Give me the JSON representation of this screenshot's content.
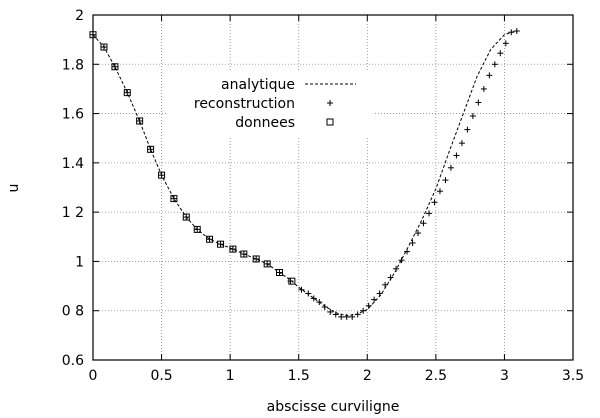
{
  "chart_data": {
    "type": "line",
    "title": "",
    "xlabel": "abscisse curviligne",
    "ylabel": "u",
    "xlim": [
      0,
      3.5
    ],
    "ylim": [
      0.6,
      2
    ],
    "grid": true,
    "legend_position": "top-center",
    "xticks": [
      {
        "value": 0,
        "label": "0"
      },
      {
        "value": 0.5,
        "label": "0.5"
      },
      {
        "value": 1,
        "label": "1"
      },
      {
        "value": 1.5,
        "label": "1.5"
      },
      {
        "value": 2,
        "label": "2"
      },
      {
        "value": 2.5,
        "label": "2.5"
      },
      {
        "value": 3,
        "label": "3"
      },
      {
        "value": 3.5,
        "label": "3.5"
      }
    ],
    "yticks": [
      {
        "value": 0.6,
        "label": "0.6"
      },
      {
        "value": 0.8,
        "label": "0 8"
      },
      {
        "value": 1.0,
        "label": "1"
      },
      {
        "value": 1.2,
        "label": "1 2"
      },
      {
        "value": 1.4,
        "label": "1.4"
      },
      {
        "value": 1.6,
        "label": "1.6"
      },
      {
        "value": 1.8,
        "label": "1.8"
      },
      {
        "value": 2.0,
        "label": "2"
      }
    ],
    "series": [
      {
        "name": "analytique",
        "style": "dashed-line",
        "color": "#000000",
        "x": [
          0,
          0.08,
          0.16,
          0.25,
          0.34,
          0.42,
          0.5,
          0.59,
          0.68,
          0.76,
          0.85,
          0.93,
          1.02,
          1.1,
          1.19,
          1.27,
          1.36,
          1.45,
          1.5,
          1.6,
          1.7,
          1.78,
          1.85,
          1.92,
          2.0,
          2.1,
          2.2,
          2.3,
          2.4,
          2.5,
          2.6,
          2.7,
          2.8,
          2.9,
          3.0,
          3.08
        ],
        "y": [
          1.92,
          1.87,
          1.79,
          1.685,
          1.57,
          1.455,
          1.35,
          1.255,
          1.18,
          1.13,
          1.09,
          1.07,
          1.05,
          1.03,
          1.01,
          0.99,
          0.955,
          0.92,
          0.895,
          0.855,
          0.815,
          0.79,
          0.78,
          0.785,
          0.805,
          0.865,
          0.955,
          1.06,
          1.17,
          1.295,
          1.45,
          1.6,
          1.75,
          1.86,
          1.92,
          1.935
        ]
      },
      {
        "name": "reconstruction",
        "style": "plus-markers",
        "color": "#000000",
        "x": [
          0,
          0.08,
          0.16,
          0.25,
          0.34,
          0.42,
          0.5,
          0.59,
          0.68,
          0.76,
          0.85,
          0.93,
          1.02,
          1.1,
          1.19,
          1.27,
          1.36,
          1.44,
          1.52,
          1.57,
          1.61,
          1.65,
          1.69,
          1.73,
          1.77,
          1.81,
          1.85,
          1.89,
          1.93,
          1.97,
          2.01,
          2.05,
          2.09,
          2.13,
          2.17,
          2.21,
          2.25,
          2.29,
          2.33,
          2.37,
          2.41,
          2.45,
          2.49,
          2.53,
          2.57,
          2.61,
          2.65,
          2.69,
          2.73,
          2.77,
          2.81,
          2.85,
          2.89,
          2.93,
          2.97,
          3.01,
          3.05,
          3.09
        ],
        "y": [
          1.92,
          1.87,
          1.79,
          1.685,
          1.57,
          1.455,
          1.35,
          1.255,
          1.18,
          1.13,
          1.09,
          1.07,
          1.05,
          1.03,
          1.01,
          0.99,
          0.955,
          0.92,
          0.885,
          0.87,
          0.85,
          0.835,
          0.815,
          0.795,
          0.785,
          0.775,
          0.775,
          0.775,
          0.785,
          0.8,
          0.82,
          0.845,
          0.87,
          0.905,
          0.935,
          0.97,
          1.005,
          1.04,
          1.075,
          1.115,
          1.155,
          1.195,
          1.24,
          1.285,
          1.33,
          1.38,
          1.43,
          1.48,
          1.535,
          1.59,
          1.645,
          1.7,
          1.755,
          1.8,
          1.845,
          1.885,
          1.93,
          1.935
        ]
      },
      {
        "name": "donnees",
        "style": "square-markers",
        "color": "#000000",
        "x": [
          0,
          0.08,
          0.16,
          0.25,
          0.34,
          0.42,
          0.5,
          0.59,
          0.68,
          0.76,
          0.85,
          0.93,
          1.02,
          1.1,
          1.19,
          1.27,
          1.36,
          1.45
        ],
        "y": [
          1.92,
          1.87,
          1.79,
          1.685,
          1.57,
          1.455,
          1.35,
          1.255,
          1.18,
          1.13,
          1.09,
          1.07,
          1.05,
          1.03,
          1.01,
          0.99,
          0.955,
          0.92
        ]
      }
    ]
  }
}
